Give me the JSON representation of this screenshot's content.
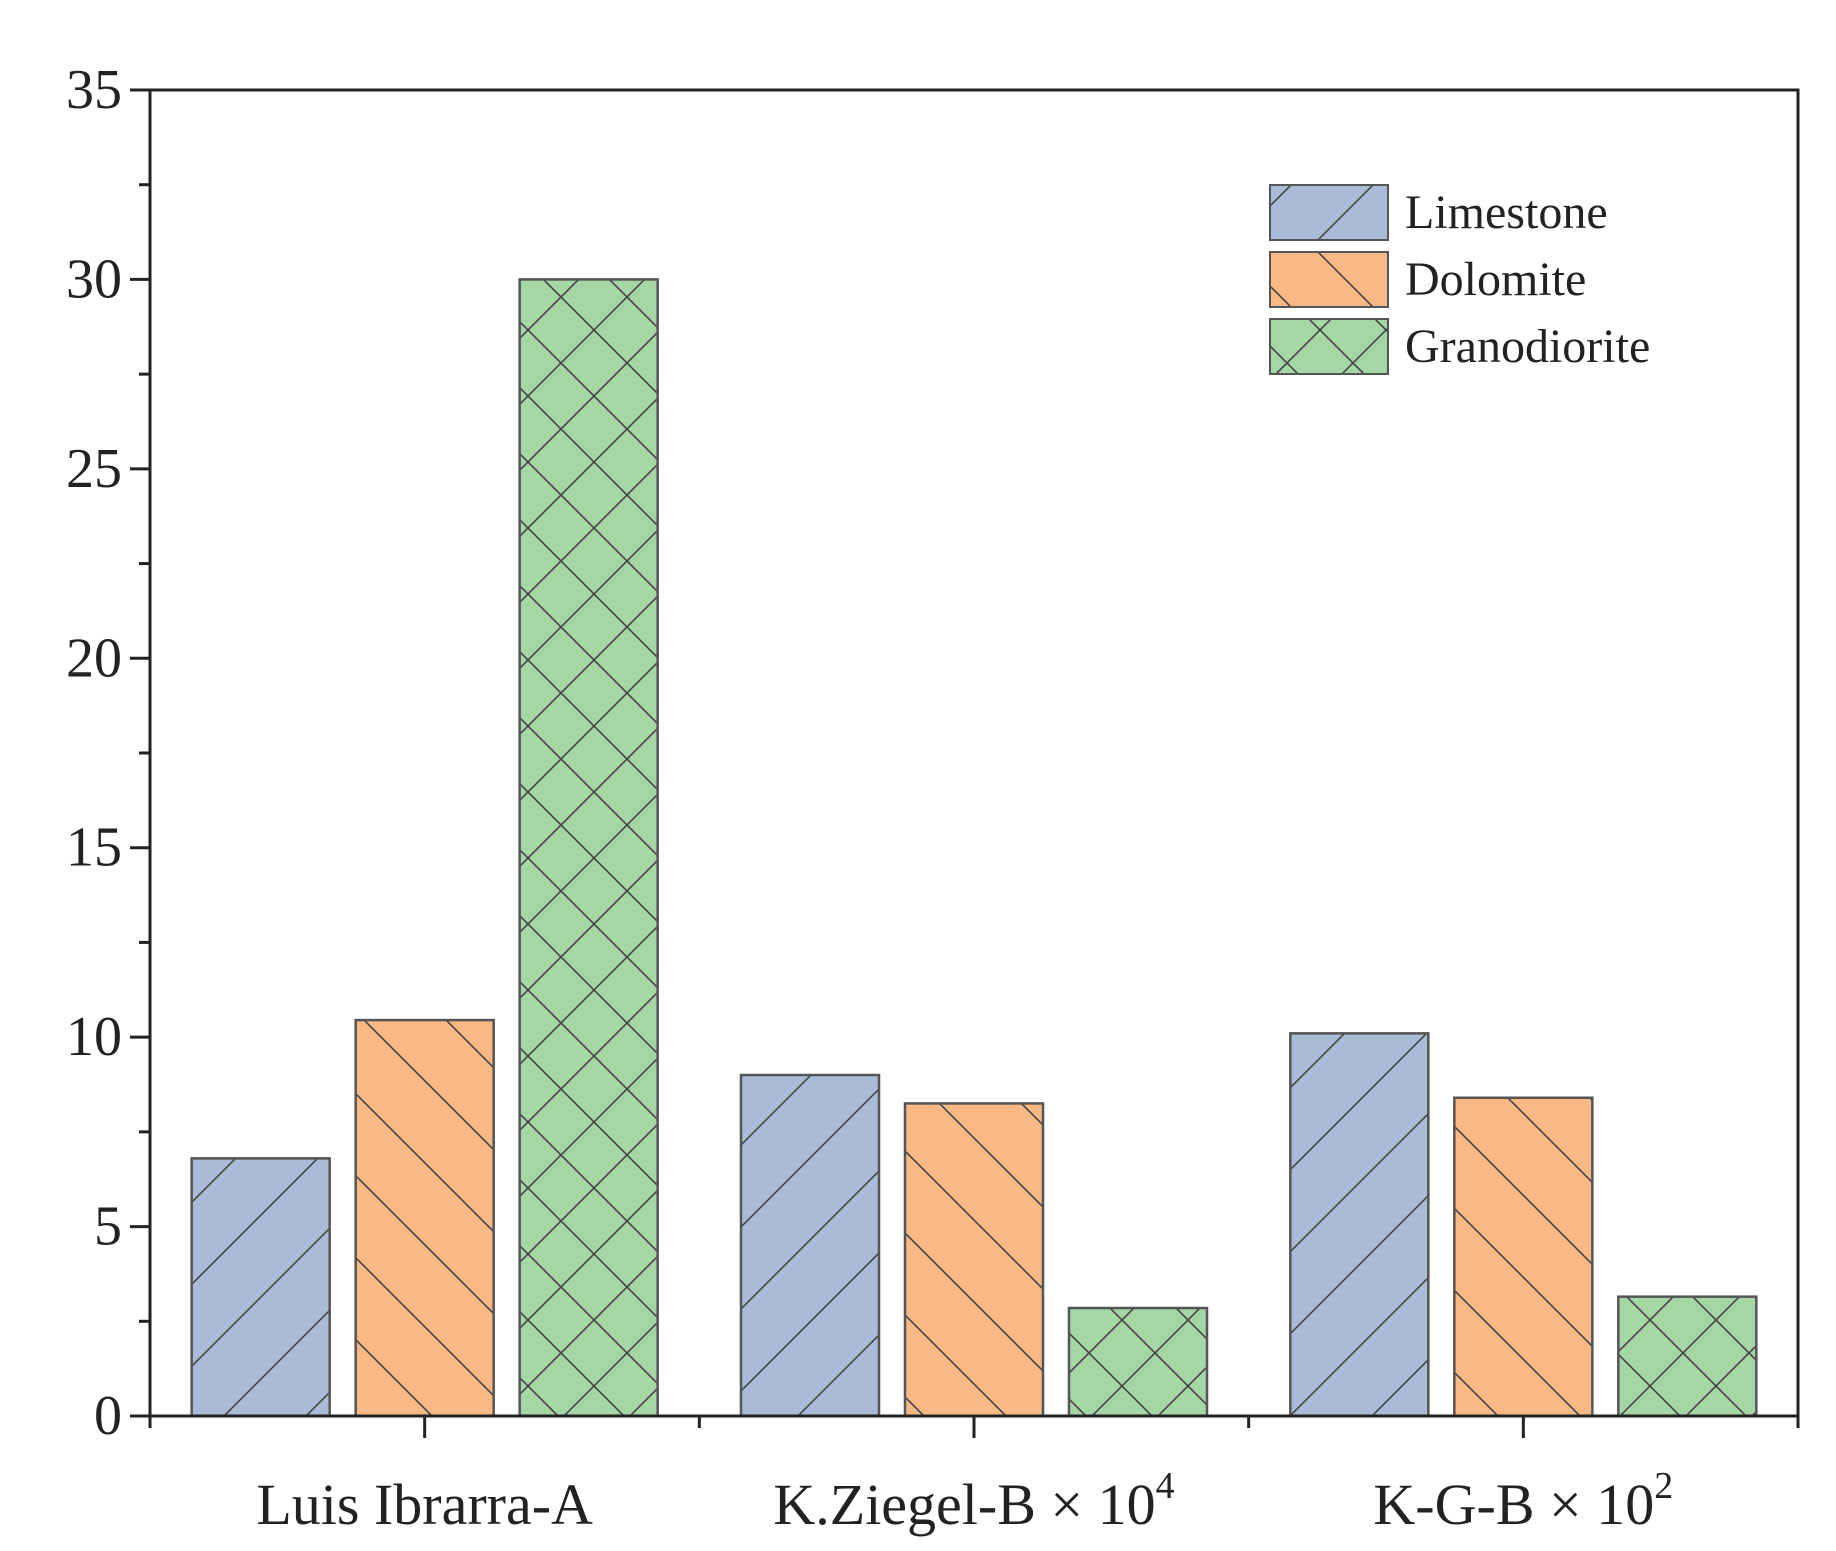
{
  "chart_data": {
    "type": "bar",
    "title": "",
    "xlabel": "",
    "ylabel": "",
    "ylim": [
      0,
      35
    ],
    "yticks": [
      0,
      5,
      10,
      15,
      20,
      25,
      30,
      35
    ],
    "categories": [
      {
        "base": "Luis Ibrarra-A",
        "sup": ""
      },
      {
        "base": "K.Ziegel-B × 10",
        "sup": "4"
      },
      {
        "base": "K-G-B × 10",
        "sup": "2"
      }
    ],
    "series": [
      {
        "name": "Limestone",
        "color": "#a9bbd6",
        "hatch": "forward-diagonal",
        "values": [
          6.8,
          9.0,
          10.1
        ]
      },
      {
        "name": "Dolomite",
        "color": "#f8b987",
        "hatch": "back-diagonal",
        "values": [
          10.45,
          8.25,
          8.4
        ]
      },
      {
        "name": "Granodiorite",
        "color": "#a5d7a6",
        "hatch": "crosshatch",
        "values": [
          30.0,
          2.85,
          3.15
        ]
      }
    ],
    "legend": {
      "position": "top-right"
    },
    "grid": false
  }
}
